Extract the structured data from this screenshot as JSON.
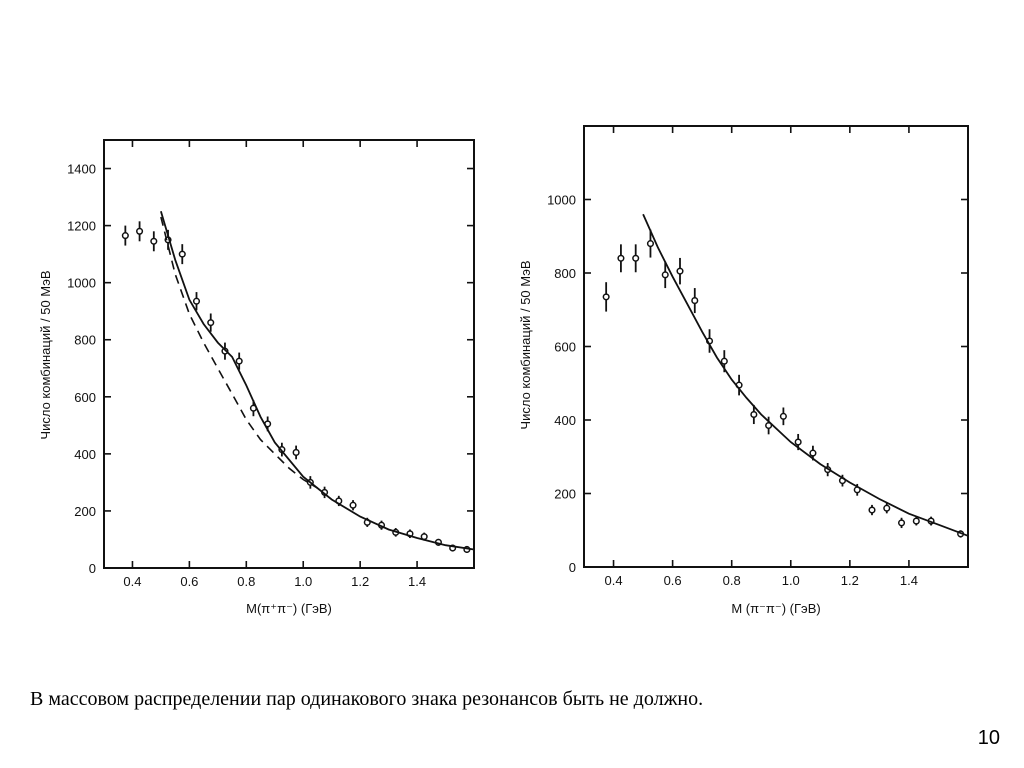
{
  "caption": "В массовом распределении пар одинакового знака резонансов быть не должно.",
  "page_number": "10",
  "chart_data": [
    {
      "type": "scatter",
      "xlabel": "M(π⁺π⁻) (ГэВ)",
      "ylabel": "Число комбинаций / 50 МэВ",
      "xlim": [
        0.3,
        1.6
      ],
      "ylim": [
        0,
        1500
      ],
      "xticks": [
        0.4,
        0.6,
        0.8,
        1.0,
        1.2,
        1.4
      ],
      "yticks": [
        0,
        200,
        400,
        600,
        800,
        1000,
        1200,
        1400
      ],
      "series": [
        {
          "kind": "points",
          "x": [
            0.375,
            0.425,
            0.475,
            0.525,
            0.575,
            0.625,
            0.675,
            0.725,
            0.775,
            0.825,
            0.875,
            0.925,
            0.975,
            1.025,
            1.075,
            1.125,
            1.175,
            1.225,
            1.275,
            1.325,
            1.375,
            1.425,
            1.475,
            1.525,
            1.575
          ],
          "y": [
            1165,
            1180,
            1145,
            1150,
            1100,
            935,
            860,
            760,
            725,
            560,
            505,
            415,
            405,
            300,
            265,
            235,
            220,
            160,
            150,
            125,
            120,
            110,
            90,
            70,
            65
          ],
          "err": [
            35,
            35,
            35,
            35,
            35,
            32,
            32,
            30,
            30,
            28,
            26,
            24,
            24,
            22,
            20,
            18,
            18,
            16,
            16,
            15,
            15,
            14,
            12,
            12,
            12
          ]
        },
        {
          "kind": "solid",
          "x": [
            0.5,
            0.55,
            0.6,
            0.65,
            0.7,
            0.75,
            0.8,
            0.85,
            0.9,
            1.0,
            1.1,
            1.2,
            1.3,
            1.4,
            1.5,
            1.6
          ],
          "y": [
            1250,
            1080,
            940,
            855,
            790,
            740,
            640,
            530,
            440,
            320,
            240,
            180,
            135,
            105,
            80,
            65
          ]
        },
        {
          "kind": "dashed",
          "x": [
            0.5,
            0.55,
            0.6,
            0.65,
            0.7,
            0.75,
            0.8,
            0.85,
            0.9,
            0.95,
            1.0,
            1.05
          ],
          "y": [
            1230,
            1030,
            890,
            790,
            700,
            610,
            520,
            450,
            400,
            350,
            310,
            280
          ]
        }
      ]
    },
    {
      "type": "scatter",
      "xlabel": "M (π⁻π⁻) (ГэВ)",
      "ylabel": "Число комбинаций / 50 МэВ",
      "xlim": [
        0.3,
        1.6
      ],
      "ylim": [
        0,
        1200
      ],
      "xticks": [
        0.4,
        0.6,
        0.8,
        1.0,
        1.2,
        1.4
      ],
      "yticks": [
        0,
        200,
        400,
        600,
        800,
        1000
      ],
      "series": [
        {
          "kind": "points",
          "x": [
            0.375,
            0.425,
            0.475,
            0.525,
            0.575,
            0.625,
            0.675,
            0.725,
            0.775,
            0.825,
            0.875,
            0.925,
            0.975,
            1.025,
            1.075,
            1.125,
            1.175,
            1.225,
            1.275,
            1.325,
            1.375,
            1.425,
            1.475,
            1.575
          ],
          "y": [
            735,
            840,
            840,
            880,
            795,
            805,
            725,
            615,
            560,
            495,
            415,
            385,
            410,
            340,
            310,
            265,
            235,
            210,
            155,
            160,
            120,
            125,
            125,
            90
          ],
          "err": [
            40,
            38,
            38,
            38,
            36,
            36,
            34,
            32,
            30,
            28,
            26,
            24,
            24,
            22,
            20,
            18,
            16,
            16,
            14,
            14,
            14,
            12,
            12,
            10
          ]
        },
        {
          "kind": "solid",
          "x": [
            0.5,
            0.55,
            0.6,
            0.65,
            0.7,
            0.75,
            0.8,
            0.85,
            0.9,
            1.0,
            1.1,
            1.2,
            1.3,
            1.4,
            1.5,
            1.6
          ],
          "y": [
            960,
            870,
            790,
            715,
            640,
            570,
            510,
            460,
            415,
            340,
            280,
            230,
            185,
            145,
            115,
            85
          ]
        }
      ]
    }
  ]
}
